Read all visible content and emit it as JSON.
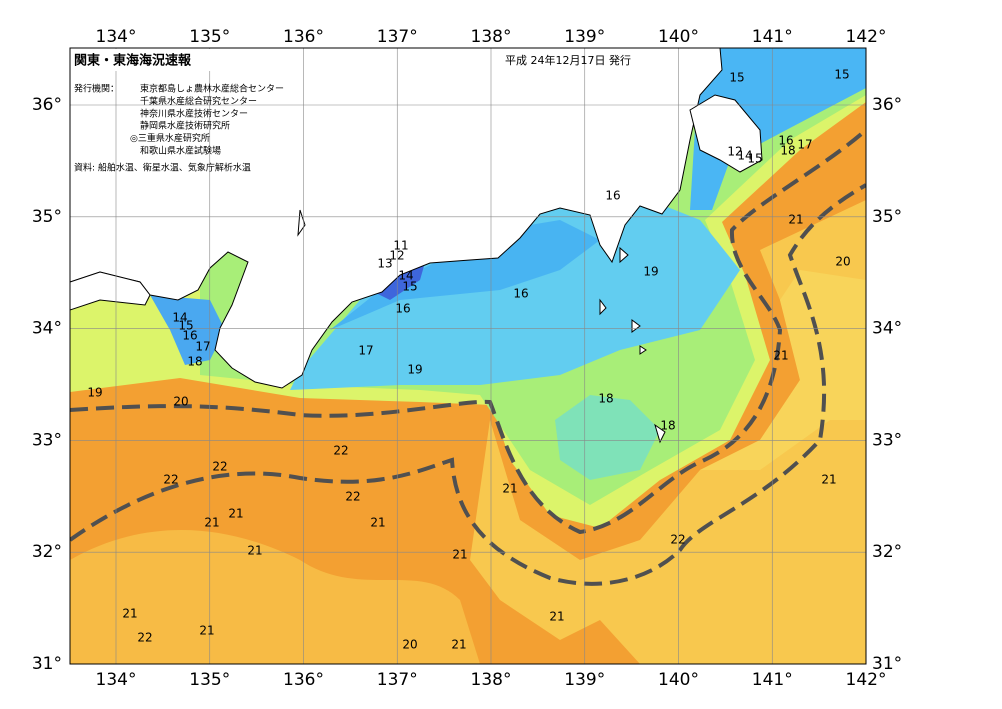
{
  "header": {
    "title": "関東・東海海況速報",
    "date": "平成 24年12月17日 発行"
  },
  "issuer": {
    "label": "発行機関：",
    "institutions": [
      "東京都島しょ農林水産総合センター",
      "千葉県水産総合研究センター",
      "神奈川県水産技術センター",
      "静岡県水産技術研究所",
      "◎三重県水産研究所",
      "和歌山県水産試験場"
    ]
  },
  "source": "資料: 船舶水温、衛星水温、気象庁解析水温",
  "map": {
    "lon_ticks": [
      {
        "value": 134,
        "label": "134°"
      },
      {
        "value": 135,
        "label": "135°"
      },
      {
        "value": 136,
        "label": "136°"
      },
      {
        "value": 137,
        "label": "137°"
      },
      {
        "value": 138,
        "label": "138°"
      },
      {
        "value": 139,
        "label": "139°"
      },
      {
        "value": 140,
        "label": "140°"
      },
      {
        "value": 141,
        "label": "141°"
      },
      {
        "value": 142,
        "label": "142°"
      }
    ],
    "lat_ticks": [
      {
        "value": 36,
        "label": "36°"
      },
      {
        "value": 35,
        "label": "35°"
      },
      {
        "value": 34,
        "label": "34°"
      },
      {
        "value": 33,
        "label": "33°"
      },
      {
        "value": 32,
        "label": "32°"
      },
      {
        "value": 31,
        "label": "31°"
      }
    ],
    "contour_labels": [
      15,
      15,
      16,
      17,
      18,
      12,
      14,
      15,
      16,
      21,
      20,
      19,
      11,
      12,
      13,
      14,
      15,
      16,
      16,
      14,
      15,
      16,
      17,
      18,
      17,
      19,
      21,
      19,
      20,
      18,
      18,
      22,
      22,
      22,
      21,
      21,
      22,
      21,
      21,
      21,
      22,
      21,
      21,
      21,
      21,
      21,
      22,
      20,
      21
    ]
  }
}
